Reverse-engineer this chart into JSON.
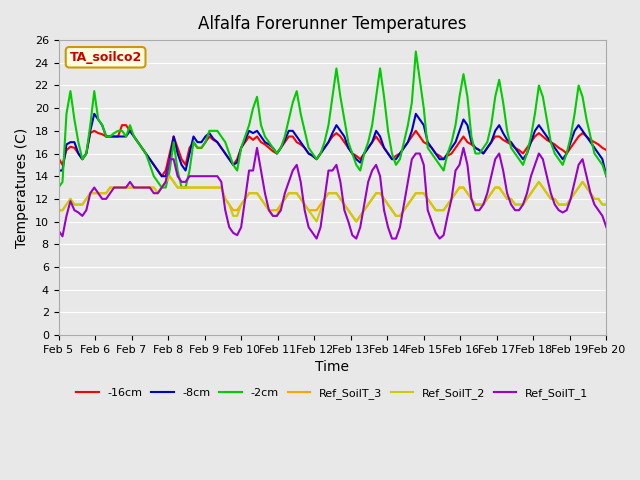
{
  "title": "Alfalfa Forerunner Temperatures",
  "xlabel": "Time",
  "ylabel": "Temperatures (C)",
  "annotation": "TA_soilco2",
  "ylim": [
    0,
    26
  ],
  "yticks": [
    0,
    2,
    4,
    6,
    8,
    10,
    12,
    14,
    16,
    18,
    20,
    22,
    24,
    26
  ],
  "bg_color": "#e8e8e8",
  "legend_entries": [
    "-16cm",
    "-8cm",
    "-2cm",
    "Ref_SoilT_3",
    "Ref_SoilT_2",
    "Ref_SoilT_1"
  ],
  "line_colors": [
    "#ff0000",
    "#0000cc",
    "#00cc00",
    "#ffa500",
    "#cccc00",
    "#9900cc"
  ],
  "x_labels": [
    "Feb 5",
    "Feb 6",
    "Feb 7",
    "Feb 8",
    "Feb 9",
    "Feb 10",
    "Feb 11",
    "Feb 12",
    "Feb 13",
    "Feb 14",
    "Feb 15",
    "Feb 16",
    "Feb 17",
    "Feb 18",
    "Feb 19",
    "Feb 20"
  ],
  "series": {
    "neg16cm": [
      15.6,
      15.0,
      16.3,
      16.6,
      16.5,
      16.0,
      15.5,
      16.0,
      17.8,
      18.0,
      17.8,
      17.7,
      17.5,
      17.5,
      17.5,
      17.5,
      18.5,
      18.5,
      18.0,
      17.5,
      17.0,
      16.5,
      16.0,
      15.5,
      15.0,
      14.5,
      14.0,
      14.5,
      16.0,
      17.5,
      16.5,
      15.5,
      15.0,
      16.5,
      17.0,
      16.5,
      16.5,
      17.0,
      17.5,
      17.2,
      17.0,
      16.5,
      16.0,
      15.5,
      15.0,
      15.5,
      16.5,
      17.0,
      17.5,
      17.2,
      17.5,
      17.0,
      16.8,
      16.5,
      16.2,
      16.0,
      16.5,
      17.0,
      17.5,
      17.5,
      17.0,
      16.8,
      16.5,
      16.0,
      15.8,
      15.5,
      16.0,
      16.5,
      17.0,
      17.5,
      17.8,
      17.5,
      17.0,
      16.5,
      16.0,
      15.8,
      15.5,
      16.0,
      16.5,
      17.0,
      17.5,
      17.0,
      16.5,
      16.0,
      15.5,
      15.8,
      16.0,
      16.5,
      17.0,
      17.5,
      18.0,
      17.5,
      17.0,
      16.8,
      16.5,
      16.0,
      15.8,
      15.5,
      15.8,
      16.0,
      16.5,
      17.0,
      17.5,
      17.0,
      16.8,
      16.5,
      16.3,
      16.0,
      16.5,
      17.0,
      17.5,
      17.5,
      17.2,
      17.0,
      16.8,
      16.5,
      16.3,
      16.0,
      16.5,
      17.0,
      17.5,
      17.8,
      17.5,
      17.2,
      17.0,
      16.8,
      16.5,
      16.3,
      16.0,
      16.5,
      17.0,
      17.5,
      17.8,
      17.5,
      17.2,
      17.0,
      16.8,
      16.5,
      16.3
    ],
    "neg8cm": [
      14.5,
      14.5,
      16.8,
      17.0,
      17.0,
      16.0,
      15.5,
      16.0,
      18.0,
      19.5,
      19.0,
      18.5,
      17.5,
      17.5,
      17.5,
      17.5,
      17.5,
      17.5,
      18.0,
      17.5,
      17.0,
      16.5,
      16.0,
      15.5,
      15.0,
      14.5,
      14.0,
      14.0,
      15.5,
      17.5,
      16.0,
      15.0,
      14.5,
      16.0,
      17.5,
      17.0,
      17.0,
      17.5,
      17.8,
      17.3,
      17.0,
      16.5,
      16.0,
      15.5,
      15.0,
      15.2,
      16.5,
      17.2,
      18.0,
      17.8,
      18.0,
      17.5,
      17.0,
      16.8,
      16.5,
      16.0,
      16.5,
      17.2,
      18.0,
      18.0,
      17.5,
      17.0,
      16.5,
      16.0,
      15.8,
      15.5,
      16.0,
      16.5,
      17.0,
      17.8,
      18.5,
      18.0,
      17.5,
      16.5,
      16.0,
      15.5,
      15.2,
      16.0,
      16.5,
      17.0,
      18.0,
      17.5,
      16.5,
      16.0,
      15.5,
      15.5,
      16.0,
      16.5,
      17.0,
      18.0,
      19.5,
      19.0,
      18.5,
      17.0,
      16.5,
      16.0,
      15.5,
      15.5,
      16.0,
      16.5,
      17.0,
      18.0,
      19.0,
      18.5,
      17.0,
      16.5,
      16.3,
      16.0,
      16.5,
      17.0,
      18.0,
      18.5,
      17.8,
      17.2,
      17.0,
      16.5,
      16.0,
      15.5,
      16.0,
      17.0,
      18.0,
      18.5,
      18.0,
      17.5,
      17.0,
      16.5,
      16.0,
      15.5,
      16.0,
      17.0,
      18.0,
      18.5,
      18.0,
      17.5,
      17.0,
      16.5,
      16.0,
      15.5,
      14.0
    ],
    "neg2cm": [
      13.0,
      13.5,
      19.5,
      21.5,
      19.0,
      17.0,
      15.5,
      16.0,
      18.5,
      21.5,
      19.0,
      18.5,
      17.5,
      17.5,
      17.8,
      18.0,
      18.0,
      17.5,
      18.5,
      17.5,
      17.0,
      16.5,
      16.0,
      15.0,
      14.0,
      13.5,
      13.0,
      13.0,
      14.5,
      17.0,
      14.5,
      13.0,
      13.0,
      14.5,
      17.0,
      16.5,
      16.5,
      17.0,
      18.0,
      18.0,
      18.0,
      17.5,
      17.0,
      16.0,
      15.0,
      14.5,
      16.5,
      17.5,
      18.5,
      20.0,
      21.0,
      18.5,
      17.5,
      17.0,
      16.5,
      16.0,
      16.5,
      17.5,
      19.0,
      20.5,
      21.5,
      19.5,
      18.0,
      16.5,
      16.0,
      15.5,
      16.0,
      17.0,
      18.5,
      21.0,
      23.5,
      21.0,
      19.0,
      17.0,
      16.0,
      15.0,
      14.5,
      16.0,
      17.0,
      18.5,
      21.0,
      23.5,
      21.0,
      18.0,
      16.0,
      15.0,
      15.5,
      17.0,
      18.5,
      20.5,
      25.0,
      22.5,
      20.0,
      16.5,
      16.0,
      15.5,
      15.0,
      14.5,
      16.0,
      17.0,
      18.5,
      21.0,
      23.0,
      21.0,
      17.5,
      16.0,
      16.0,
      16.5,
      17.0,
      18.5,
      21.0,
      22.5,
      20.5,
      18.0,
      16.5,
      16.0,
      15.5,
      15.0,
      16.0,
      17.5,
      19.5,
      22.0,
      21.0,
      19.0,
      17.0,
      16.0,
      15.5,
      15.0,
      16.0,
      17.5,
      19.5,
      22.0,
      21.0,
      19.0,
      17.5,
      16.0,
      15.5,
      15.0,
      14.0
    ],
    "ref3": [
      11.0,
      11.0,
      11.5,
      12.0,
      11.5,
      11.5,
      11.5,
      12.0,
      12.5,
      12.5,
      12.5,
      12.5,
      12.5,
      13.0,
      13.0,
      13.0,
      13.0,
      13.0,
      13.0,
      13.0,
      13.0,
      13.0,
      13.0,
      13.0,
      13.0,
      12.5,
      13.0,
      13.5,
      14.0,
      13.5,
      13.0,
      13.0,
      13.0,
      13.0,
      13.0,
      13.0,
      13.0,
      13.0,
      13.0,
      13.0,
      13.0,
      13.0,
      12.0,
      11.5,
      11.0,
      11.0,
      11.5,
      12.0,
      12.5,
      12.5,
      12.5,
      12.0,
      11.5,
      11.0,
      11.0,
      11.0,
      11.5,
      12.0,
      12.5,
      12.5,
      12.5,
      12.0,
      11.5,
      11.0,
      11.0,
      11.0,
      11.5,
      12.0,
      12.5,
      12.5,
      12.5,
      12.0,
      11.5,
      11.0,
      10.5,
      10.0,
      10.5,
      11.0,
      11.5,
      12.0,
      12.5,
      12.5,
      12.0,
      11.5,
      11.0,
      10.5,
      10.5,
      11.0,
      11.5,
      12.0,
      12.5,
      12.5,
      12.5,
      12.0,
      11.5,
      11.0,
      11.0,
      11.0,
      11.5,
      12.0,
      12.5,
      13.0,
      13.0,
      12.5,
      12.0,
      11.5,
      11.5,
      11.5,
      12.0,
      12.5,
      13.0,
      13.0,
      12.5,
      12.0,
      12.0,
      11.5,
      11.5,
      11.5,
      12.0,
      12.5,
      13.0,
      13.5,
      13.0,
      12.5,
      12.0,
      12.0,
      11.5,
      11.5,
      11.5,
      12.0,
      12.5,
      13.0,
      13.5,
      13.0,
      12.5,
      12.0,
      12.0,
      11.5,
      11.5
    ],
    "ref2": [
      11.0,
      11.0,
      11.5,
      12.0,
      11.5,
      11.5,
      11.5,
      12.0,
      12.5,
      12.5,
      12.5,
      12.5,
      12.5,
      13.0,
      13.0,
      13.0,
      13.0,
      13.0,
      13.0,
      13.0,
      13.0,
      13.0,
      13.0,
      13.0,
      13.0,
      12.5,
      13.0,
      13.5,
      14.0,
      13.5,
      13.0,
      13.0,
      13.0,
      13.0,
      13.0,
      13.0,
      13.0,
      13.0,
      13.0,
      13.0,
      13.0,
      13.0,
      12.0,
      11.5,
      10.5,
      10.5,
      11.5,
      12.0,
      12.5,
      12.5,
      12.5,
      12.0,
      11.5,
      11.0,
      10.5,
      10.5,
      11.5,
      12.0,
      12.5,
      12.5,
      12.5,
      12.0,
      11.5,
      11.0,
      10.5,
      10.0,
      11.0,
      12.0,
      12.5,
      12.5,
      12.5,
      12.0,
      11.5,
      11.0,
      10.5,
      10.0,
      10.5,
      11.0,
      11.5,
      12.0,
      12.5,
      12.5,
      12.0,
      11.5,
      11.0,
      10.5,
      10.5,
      11.0,
      11.5,
      12.0,
      12.5,
      12.5,
      12.5,
      12.0,
      11.5,
      11.0,
      11.0,
      11.0,
      11.5,
      12.0,
      12.5,
      13.0,
      13.0,
      12.5,
      12.0,
      11.5,
      11.5,
      11.5,
      12.0,
      12.5,
      13.0,
      13.0,
      12.5,
      12.0,
      12.0,
      11.5,
      11.5,
      11.5,
      12.0,
      12.5,
      13.0,
      13.5,
      13.0,
      12.5,
      12.0,
      12.0,
      11.5,
      11.5,
      11.5,
      12.0,
      12.5,
      13.0,
      13.5,
      13.0,
      12.5,
      12.0,
      12.0,
      11.5,
      11.5
    ],
    "ref1": [
      9.2,
      8.7,
      10.5,
      11.8,
      11.0,
      10.8,
      10.5,
      11.0,
      12.5,
      13.0,
      12.5,
      12.0,
      12.0,
      12.5,
      13.0,
      13.0,
      13.0,
      13.0,
      13.5,
      13.0,
      13.0,
      13.0,
      13.0,
      13.0,
      12.5,
      12.5,
      13.0,
      13.5,
      15.5,
      15.5,
      14.0,
      13.5,
      13.5,
      14.0,
      14.0,
      14.0,
      14.0,
      14.0,
      14.0,
      14.0,
      14.0,
      13.5,
      11.0,
      9.5,
      9.0,
      8.8,
      9.5,
      12.0,
      14.5,
      14.5,
      16.5,
      14.5,
      12.5,
      11.0,
      10.5,
      10.5,
      11.0,
      12.5,
      13.5,
      14.5,
      15.0,
      13.5,
      11.0,
      9.5,
      9.0,
      8.5,
      9.5,
      12.0,
      14.5,
      14.5,
      15.0,
      13.5,
      11.0,
      10.0,
      8.8,
      8.5,
      9.5,
      11.5,
      13.5,
      14.5,
      15.0,
      14.0,
      11.0,
      9.5,
      8.5,
      8.5,
      9.5,
      11.5,
      13.5,
      15.5,
      16.0,
      16.0,
      15.0,
      11.0,
      10.0,
      9.0,
      8.5,
      8.8,
      10.5,
      12.0,
      14.5,
      15.0,
      16.5,
      15.0,
      12.0,
      11.0,
      11.0,
      11.5,
      12.5,
      14.0,
      15.5,
      16.0,
      14.5,
      12.5,
      11.5,
      11.0,
      11.0,
      11.5,
      12.5,
      14.0,
      15.0,
      16.0,
      15.5,
      14.0,
      12.5,
      11.5,
      11.0,
      10.8,
      11.0,
      12.0,
      13.5,
      15.0,
      15.5,
      14.0,
      12.5,
      11.5,
      11.0,
      10.5,
      9.5
    ]
  }
}
